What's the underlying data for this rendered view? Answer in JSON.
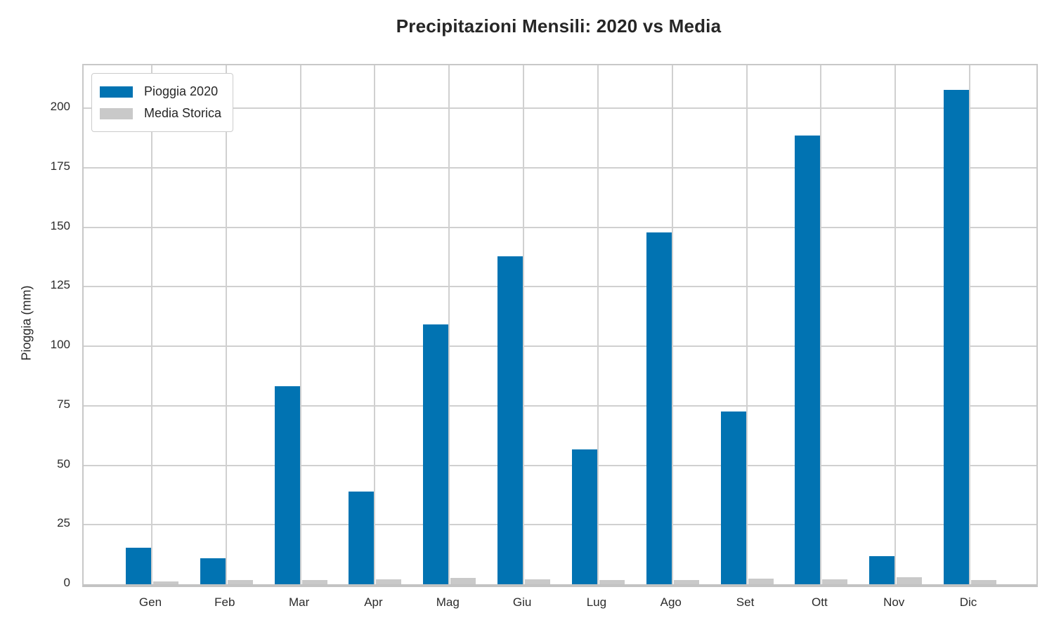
{
  "chart_data": {
    "type": "bar",
    "title": "Precipitazioni Mensili: 2020 vs Media",
    "xlabel": "",
    "ylabel": "Pioggia (mm)",
    "categories": [
      "Gen",
      "Feb",
      "Mar",
      "Apr",
      "Mag",
      "Giu",
      "Lug",
      "Ago",
      "Set",
      "Ott",
      "Nov",
      "Dic"
    ],
    "series": [
      {
        "name": "Pioggia 2020",
        "color": "#0173b2",
        "values": [
          15.4,
          10.8,
          83.2,
          38.8,
          109.2,
          137.8,
          56.5,
          147.8,
          72.7,
          188.4,
          11.8,
          207.8
        ]
      },
      {
        "name": "Media Storica",
        "color": "#c9c9c9",
        "values": [
          1.3,
          1.7,
          1.7,
          2.1,
          2.8,
          2.0,
          1.7,
          1.8,
          2.5,
          2.1,
          3.1,
          1.7
        ]
      }
    ],
    "y_ticks": [
      0,
      25,
      50,
      75,
      100,
      125,
      150,
      175,
      200
    ],
    "ylim": [
      0,
      218
    ],
    "grid": true,
    "legend_position": "upper left",
    "colors": {
      "grid": "#d0d0d0",
      "spine": "#c8c8c8",
      "text": "#262626",
      "background": "#ffffff"
    }
  }
}
